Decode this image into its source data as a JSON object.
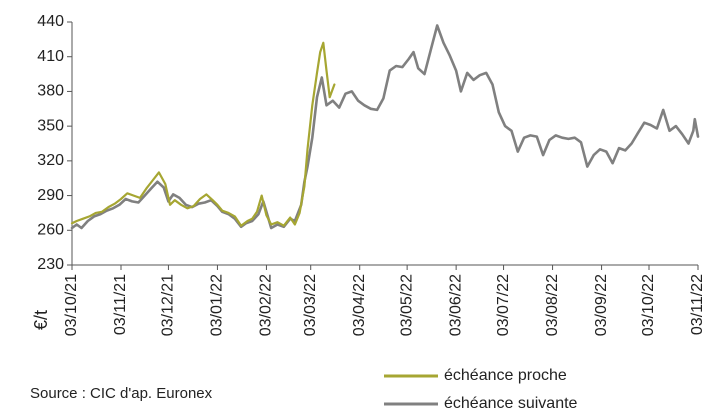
{
  "chart_data": {
    "type": "line",
    "ylabel": "€/t",
    "ylim": [
      230,
      440
    ],
    "yticks": [
      230,
      260,
      290,
      320,
      350,
      380,
      410,
      440
    ],
    "xlim": [
      "2021-10-03",
      "2022-11-03"
    ],
    "xticks": [
      "03/10/21",
      "03/11/21",
      "03/12/21",
      "03/01/22",
      "03/02/22",
      "03/03/22",
      "03/04/22",
      "03/05/22",
      "03/06/22",
      "03/07/22",
      "03/08/22",
      "03/09/22",
      "03/10/22",
      "03/11/22"
    ],
    "xtick_dates": [
      "2021-10-03",
      "2021-11-03",
      "2021-12-03",
      "2022-01-03",
      "2022-02-03",
      "2022-03-03",
      "2022-04-03",
      "2022-05-03",
      "2022-06-03",
      "2022-07-03",
      "2022-08-03",
      "2022-09-03",
      "2022-10-03",
      "2022-11-03"
    ],
    "grid": false,
    "legend": "bottom-right",
    "source": "Source : CIC d'ap. Euronex",
    "series": [
      {
        "name": "échéance proche",
        "color": "#a6a632",
        "points": [
          [
            "2021-10-03",
            266
          ],
          [
            "2021-10-06",
            268
          ],
          [
            "2021-10-10",
            270
          ],
          [
            "2021-10-14",
            272
          ],
          [
            "2021-10-18",
            275
          ],
          [
            "2021-10-22",
            276
          ],
          [
            "2021-10-26",
            280
          ],
          [
            "2021-10-30",
            283
          ],
          [
            "2021-11-03",
            287
          ],
          [
            "2021-11-07",
            292
          ],
          [
            "2021-11-11",
            290
          ],
          [
            "2021-11-15",
            288
          ],
          [
            "2021-11-19",
            296
          ],
          [
            "2021-11-23",
            303
          ],
          [
            "2021-11-27",
            310
          ],
          [
            "2021-12-01",
            300
          ],
          [
            "2021-12-04",
            282
          ],
          [
            "2021-12-07",
            286
          ],
          [
            "2021-12-11",
            282
          ],
          [
            "2021-12-15",
            279
          ],
          [
            "2021-12-19",
            281
          ],
          [
            "2021-12-23",
            287
          ],
          [
            "2021-12-27",
            291
          ],
          [
            "2021-12-31",
            286
          ],
          [
            "2022-01-03",
            282
          ],
          [
            "2022-01-06",
            277
          ],
          [
            "2022-01-10",
            275
          ],
          [
            "2022-01-14",
            272
          ],
          [
            "2022-01-18",
            264
          ],
          [
            "2022-01-22",
            268
          ],
          [
            "2022-01-25",
            270
          ],
          [
            "2022-01-28",
            276
          ],
          [
            "2022-01-31",
            290
          ],
          [
            "2022-02-03",
            273
          ],
          [
            "2022-02-06",
            265
          ],
          [
            "2022-02-10",
            267
          ],
          [
            "2022-02-14",
            264
          ],
          [
            "2022-02-18",
            271
          ],
          [
            "2022-02-21",
            265
          ],
          [
            "2022-02-24",
            275
          ],
          [
            "2022-02-27",
            298
          ],
          [
            "2022-03-01",
            330
          ],
          [
            "2022-03-04",
            368
          ],
          [
            "2022-03-07",
            396
          ],
          [
            "2022-03-09",
            414
          ],
          [
            "2022-03-11",
            422
          ],
          [
            "2022-03-13",
            398
          ],
          [
            "2022-03-15",
            375
          ],
          [
            "2022-03-18",
            386
          ]
        ]
      },
      {
        "name": "échéance suivante",
        "color": "#808080",
        "points": [
          [
            "2021-10-03",
            262
          ],
          [
            "2021-10-06",
            265
          ],
          [
            "2021-10-09",
            262
          ],
          [
            "2021-10-13",
            268
          ],
          [
            "2021-10-17",
            272
          ],
          [
            "2021-10-21",
            274
          ],
          [
            "2021-10-25",
            277
          ],
          [
            "2021-10-29",
            279
          ],
          [
            "2021-11-02",
            282
          ],
          [
            "2021-11-06",
            287
          ],
          [
            "2021-11-10",
            285
          ],
          [
            "2021-11-14",
            284
          ],
          [
            "2021-11-18",
            290
          ],
          [
            "2021-11-22",
            296
          ],
          [
            "2021-11-26",
            302
          ],
          [
            "2021-11-30",
            297
          ],
          [
            "2021-12-03",
            285
          ],
          [
            "2021-12-06",
            291
          ],
          [
            "2021-12-10",
            288
          ],
          [
            "2021-12-14",
            282
          ],
          [
            "2021-12-18",
            280
          ],
          [
            "2021-12-22",
            283
          ],
          [
            "2021-12-26",
            284
          ],
          [
            "2021-12-30",
            286
          ],
          [
            "2022-01-03",
            281
          ],
          [
            "2022-01-06",
            276
          ],
          [
            "2022-01-10",
            274
          ],
          [
            "2022-01-14",
            270
          ],
          [
            "2022-01-18",
            263
          ],
          [
            "2022-01-21",
            266
          ],
          [
            "2022-01-25",
            268
          ],
          [
            "2022-01-29",
            274
          ],
          [
            "2022-02-01",
            285
          ],
          [
            "2022-02-03",
            276
          ],
          [
            "2022-02-06",
            262
          ],
          [
            "2022-02-10",
            265
          ],
          [
            "2022-02-14",
            263
          ],
          [
            "2022-02-18",
            270
          ],
          [
            "2022-02-21",
            268
          ],
          [
            "2022-02-25",
            282
          ],
          [
            "2022-02-27",
            302
          ],
          [
            "2022-03-01",
            315
          ],
          [
            "2022-03-04",
            340
          ],
          [
            "2022-03-07",
            375
          ],
          [
            "2022-03-10",
            392
          ],
          [
            "2022-03-13",
            368
          ],
          [
            "2022-03-17",
            372
          ],
          [
            "2022-03-21",
            366
          ],
          [
            "2022-03-25",
            378
          ],
          [
            "2022-03-29",
            380
          ],
          [
            "2022-04-02",
            372
          ],
          [
            "2022-04-06",
            368
          ],
          [
            "2022-04-10",
            365
          ],
          [
            "2022-04-14",
            364
          ],
          [
            "2022-04-18",
            374
          ],
          [
            "2022-04-22",
            398
          ],
          [
            "2022-04-26",
            402
          ],
          [
            "2022-04-30",
            401
          ],
          [
            "2022-05-04",
            408
          ],
          [
            "2022-05-07",
            414
          ],
          [
            "2022-05-10",
            400
          ],
          [
            "2022-05-14",
            395
          ],
          [
            "2022-05-18",
            416
          ],
          [
            "2022-05-22",
            437
          ],
          [
            "2022-05-26",
            422
          ],
          [
            "2022-05-30",
            411
          ],
          [
            "2022-06-03",
            398
          ],
          [
            "2022-06-06",
            380
          ],
          [
            "2022-06-10",
            396
          ],
          [
            "2022-06-14",
            390
          ],
          [
            "2022-06-18",
            394
          ],
          [
            "2022-06-22",
            396
          ],
          [
            "2022-06-26",
            386
          ],
          [
            "2022-06-30",
            362
          ],
          [
            "2022-07-04",
            350
          ],
          [
            "2022-07-08",
            346
          ],
          [
            "2022-07-12",
            328
          ],
          [
            "2022-07-16",
            340
          ],
          [
            "2022-07-20",
            342
          ],
          [
            "2022-07-24",
            341
          ],
          [
            "2022-07-28",
            325
          ],
          [
            "2022-08-01",
            338
          ],
          [
            "2022-08-05",
            342
          ],
          [
            "2022-08-09",
            340
          ],
          [
            "2022-08-13",
            339
          ],
          [
            "2022-08-17",
            340
          ],
          [
            "2022-08-21",
            336
          ],
          [
            "2022-08-25",
            315
          ],
          [
            "2022-08-29",
            325
          ],
          [
            "2022-09-02",
            330
          ],
          [
            "2022-09-06",
            328
          ],
          [
            "2022-09-10",
            318
          ],
          [
            "2022-09-14",
            331
          ],
          [
            "2022-09-18",
            329
          ],
          [
            "2022-09-22",
            335
          ],
          [
            "2022-09-26",
            344
          ],
          [
            "2022-09-30",
            353
          ],
          [
            "2022-10-04",
            351
          ],
          [
            "2022-10-08",
            348
          ],
          [
            "2022-10-12",
            364
          ],
          [
            "2022-10-16",
            346
          ],
          [
            "2022-10-20",
            350
          ],
          [
            "2022-10-24",
            343
          ],
          [
            "2022-10-28",
            335
          ],
          [
            "2022-10-31",
            346
          ],
          [
            "2022-11-01",
            356
          ],
          [
            "2022-11-03",
            341
          ]
        ]
      }
    ]
  }
}
